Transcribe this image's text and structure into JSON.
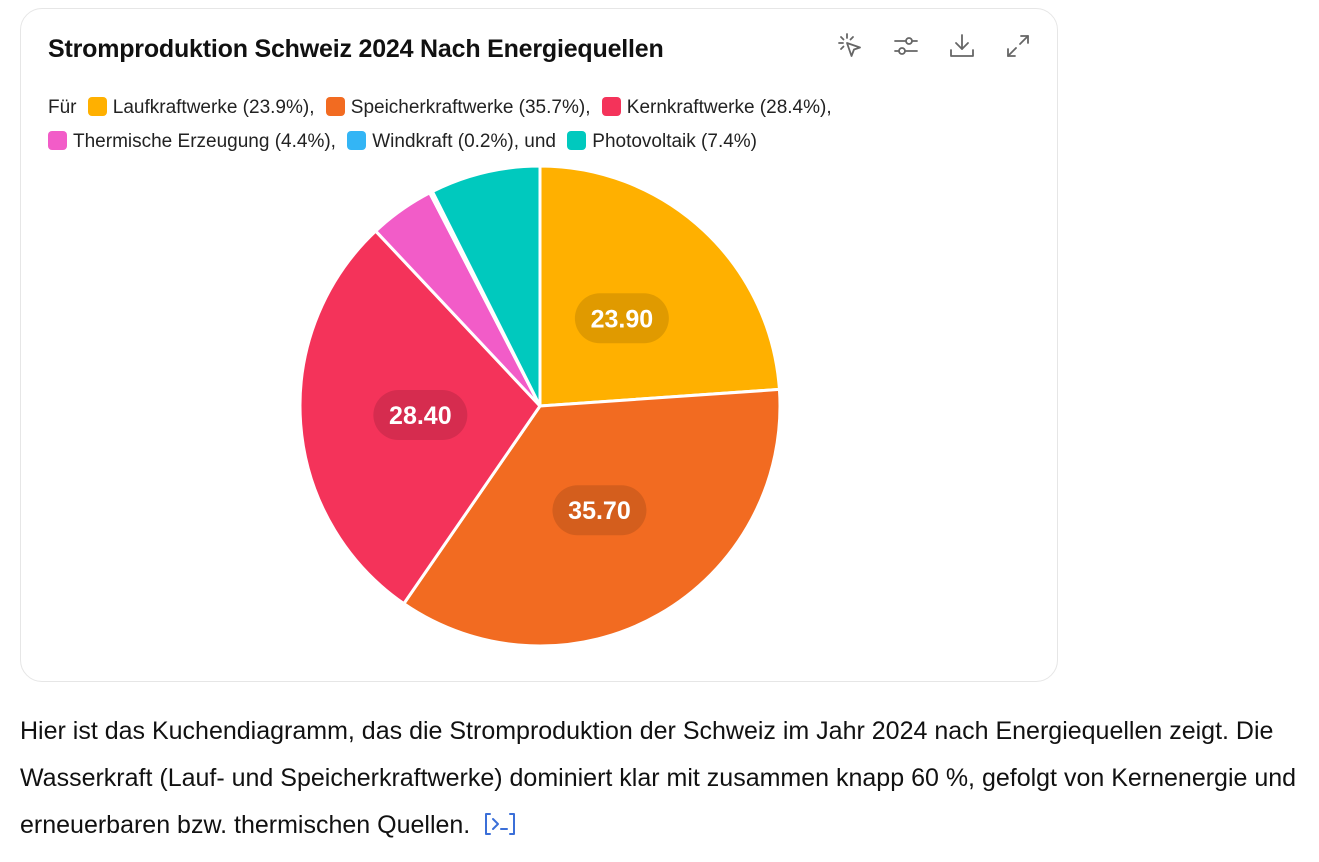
{
  "card": {
    "title": "Stromproduktion Schweiz 2024 Nach Energiequellen",
    "toolbar": [
      {
        "name": "select-pointer-icon"
      },
      {
        "name": "sliders-icon"
      },
      {
        "name": "download-icon"
      },
      {
        "name": "expand-icon"
      }
    ]
  },
  "legend": {
    "prefix": "Für",
    "and_word": "und"
  },
  "chart_data": {
    "type": "pie",
    "title": "Stromproduktion Schweiz 2024 Nach Energiequellen",
    "legend_position": "top",
    "series": [
      {
        "name": "Laufkraftwerke",
        "value": 23.9,
        "legend_label": "Laufkraftwerke (23.9%),",
        "data_label": "23.90",
        "color": "#FFB000"
      },
      {
        "name": "Speicherkraftwerke",
        "value": 35.7,
        "legend_label": "Speicherkraftwerke (35.7%),",
        "data_label": "35.70",
        "color": "#F26B21"
      },
      {
        "name": "Kernkraftwerke",
        "value": 28.4,
        "legend_label": "Kernkraftwerke (28.4%),",
        "data_label": "28.40",
        "color": "#F4335A"
      },
      {
        "name": "Thermische Erzeugung",
        "value": 4.4,
        "legend_label": "Thermische Erzeugung (4.4%),",
        "data_label": "",
        "color": "#F25CC8"
      },
      {
        "name": "Windkraft",
        "value": 0.2,
        "legend_label": "Windkraft (0.2%),",
        "data_label": "",
        "color": "#33B5F5"
      },
      {
        "name": "Photovoltaik",
        "value": 7.4,
        "legend_label": "Photovoltaik (7.4%)",
        "data_label": "",
        "color": "#00C9BE"
      }
    ]
  },
  "body": {
    "text": "Hier ist das Kuchendiagramm, das die Stromproduktion der Schweiz im Jahr 2024 nach Energiequellen zeigt. Die Wasserkraft (Lauf- und Speicherkraftwerke) dominiert klar mit zusammen knapp 60 %, gefolgt von Kernenergie und erneuerbaren bzw. thermischen Quellen."
  }
}
